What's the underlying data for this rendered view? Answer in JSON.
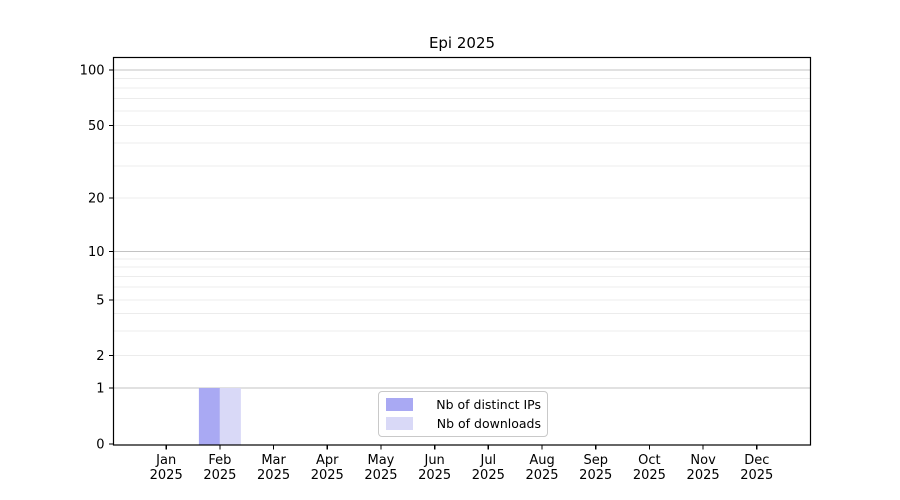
{
  "chart_data": {
    "type": "bar",
    "title": "Epi 2025",
    "x_labels": [
      {
        "line1": "Jan",
        "line2": "2025"
      },
      {
        "line1": "Feb",
        "line2": "2025"
      },
      {
        "line1": "Mar",
        "line2": "2025"
      },
      {
        "line1": "Apr",
        "line2": "2025"
      },
      {
        "line1": "May",
        "line2": "2025"
      },
      {
        "line1": "Jun",
        "line2": "2025"
      },
      {
        "line1": "Jul",
        "line2": "2025"
      },
      {
        "line1": "Aug",
        "line2": "2025"
      },
      {
        "line1": "Sep",
        "line2": "2025"
      },
      {
        "line1": "Oct",
        "line2": "2025"
      },
      {
        "line1": "Nov",
        "line2": "2025"
      },
      {
        "line1": "Dec",
        "line2": "2025"
      }
    ],
    "series": [
      {
        "name": "Nb of distinct IPs",
        "color": "#a9a9f3",
        "values": [
          0,
          1,
          0,
          0,
          0,
          0,
          0,
          0,
          0,
          0,
          0,
          0
        ]
      },
      {
        "name": "Nb of downloads",
        "color": "#d9d9f7",
        "values": [
          0,
          1,
          0,
          0,
          0,
          0,
          0,
          0,
          0,
          0,
          0,
          0
        ]
      }
    ],
    "yscale": "symlog",
    "ylim": [
      0,
      117
    ],
    "yticks": [
      0,
      1,
      2,
      5,
      10,
      20,
      50,
      100
    ],
    "grid": {
      "minor_values": [
        2,
        3,
        4,
        5,
        6,
        7,
        8,
        9,
        20,
        30,
        40,
        50,
        60,
        70,
        80,
        90
      ],
      "major_values": [
        1,
        10,
        100
      ],
      "minor_color": "#ececec",
      "major_color": "#c3c3c3"
    },
    "legend": {
      "position": "lower center"
    },
    "style": {
      "axis_color": "#000000",
      "text_color": "#000000",
      "background": "#ffffff"
    }
  }
}
